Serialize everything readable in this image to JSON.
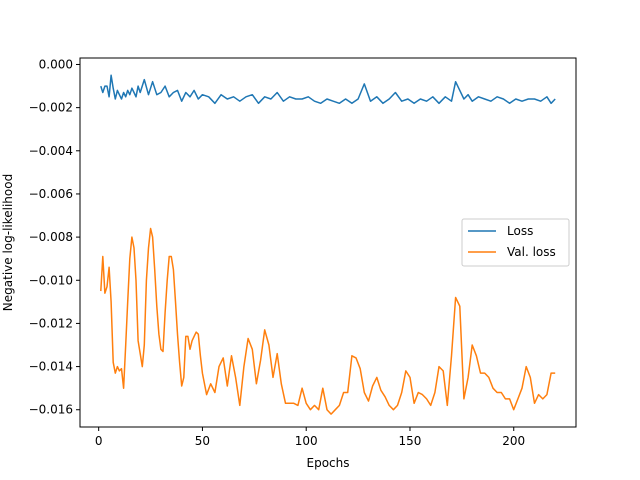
{
  "chart_data": {
    "type": "line",
    "title": "",
    "xlabel": "Epochs",
    "ylabel": "Negative log-likelihood",
    "xlim": [
      -9,
      230
    ],
    "ylim": [
      -0.0168,
      0.0003
    ],
    "xticks": [
      0,
      50,
      100,
      150,
      200
    ],
    "yticks": [
      0.0,
      -0.002,
      -0.004,
      -0.006,
      -0.008,
      -0.01,
      -0.012,
      -0.014,
      -0.016
    ],
    "ytick_labels": [
      "0.000",
      "−0.002",
      "−0.004",
      "−0.006",
      "−0.008",
      "−0.010",
      "−0.012",
      "−0.014",
      "−0.016"
    ],
    "grid": false,
    "legend_position": "center-right",
    "series": [
      {
        "name": "Loss",
        "color": "#1f77b4",
        "x": [
          1,
          2,
          3,
          4,
          5,
          6,
          7,
          8,
          9,
          10,
          11,
          12,
          13,
          14,
          15,
          16,
          17,
          18,
          19,
          20,
          22,
          24,
          26,
          28,
          30,
          32,
          34,
          36,
          38,
          40,
          42,
          44,
          46,
          48,
          50,
          53,
          56,
          59,
          62,
          65,
          68,
          71,
          74,
          77,
          80,
          83,
          86,
          89,
          92,
          95,
          98,
          101,
          104,
          107,
          110,
          113,
          116,
          119,
          122,
          125,
          128,
          131,
          134,
          137,
          140,
          143,
          146,
          149,
          152,
          155,
          158,
          161,
          164,
          167,
          170,
          172,
          174,
          176,
          178,
          180,
          183,
          186,
          189,
          192,
          195,
          198,
          201,
          204,
          207,
          210,
          213,
          216,
          218,
          220
        ],
        "y": [
          -0.001,
          -0.0013,
          -0.001,
          -0.001,
          -0.0015,
          -0.0005,
          -0.0011,
          -0.0016,
          -0.0012,
          -0.0014,
          -0.0016,
          -0.0013,
          -0.0015,
          -0.0012,
          -0.0014,
          -0.0011,
          -0.0013,
          -0.0015,
          -0.001,
          -0.0013,
          -0.0007,
          -0.0014,
          -0.0008,
          -0.0014,
          -0.0013,
          -0.001,
          -0.0015,
          -0.0013,
          -0.0012,
          -0.0017,
          -0.0013,
          -0.0015,
          -0.0012,
          -0.0016,
          -0.0014,
          -0.0015,
          -0.0018,
          -0.0014,
          -0.0016,
          -0.0015,
          -0.0017,
          -0.0015,
          -0.0014,
          -0.0018,
          -0.0015,
          -0.0016,
          -0.0013,
          -0.0017,
          -0.0015,
          -0.0016,
          -0.0016,
          -0.0015,
          -0.0017,
          -0.0018,
          -0.0016,
          -0.0017,
          -0.0018,
          -0.0016,
          -0.0018,
          -0.0016,
          -0.0009,
          -0.0017,
          -0.0015,
          -0.0018,
          -0.0016,
          -0.0013,
          -0.0017,
          -0.0016,
          -0.0018,
          -0.0016,
          -0.0017,
          -0.0015,
          -0.0018,
          -0.0015,
          -0.0017,
          -0.0008,
          -0.0012,
          -0.0016,
          -0.0014,
          -0.0017,
          -0.0015,
          -0.0016,
          -0.0017,
          -0.0015,
          -0.0016,
          -0.0018,
          -0.0016,
          -0.0017,
          -0.0016,
          -0.0016,
          -0.0017,
          -0.0015,
          -0.0018,
          -0.0016
        ]
      },
      {
        "name": "Val. loss",
        "color": "#ff7f0e",
        "x": [
          1,
          2,
          3,
          4,
          5,
          6,
          7,
          8,
          9,
          10,
          11,
          12,
          13,
          14,
          15,
          16,
          17,
          18,
          19,
          20,
          21,
          22,
          23,
          24,
          25,
          26,
          27,
          28,
          29,
          30,
          31,
          32,
          33,
          34,
          35,
          36,
          37,
          38,
          39,
          40,
          41,
          42,
          43,
          44,
          45,
          46,
          47,
          48,
          49,
          50,
          52,
          54,
          56,
          58,
          60,
          62,
          64,
          66,
          68,
          70,
          72,
          74,
          76,
          78,
          80,
          82,
          84,
          86,
          88,
          90,
          92,
          94,
          96,
          98,
          100,
          102,
          104,
          106,
          108,
          110,
          112,
          114,
          116,
          118,
          120,
          122,
          124,
          126,
          128,
          130,
          132,
          134,
          136,
          138,
          140,
          142,
          144,
          146,
          148,
          150,
          152,
          154,
          156,
          158,
          160,
          162,
          164,
          166,
          168,
          170,
          172,
          174,
          176,
          178,
          180,
          182,
          184,
          186,
          188,
          190,
          192,
          194,
          196,
          198,
          200,
          202,
          204,
          206,
          208,
          210,
          212,
          214,
          216,
          218,
          220
        ],
        "y": [
          -0.0105,
          -0.0089,
          -0.0106,
          -0.0103,
          -0.0094,
          -0.011,
          -0.0138,
          -0.0143,
          -0.014,
          -0.0142,
          -0.0141,
          -0.015,
          -0.013,
          -0.011,
          -0.009,
          -0.008,
          -0.0085,
          -0.01,
          -0.0128,
          -0.0134,
          -0.014,
          -0.013,
          -0.01,
          -0.0085,
          -0.0076,
          -0.008,
          -0.0095,
          -0.0112,
          -0.0125,
          -0.0132,
          -0.0133,
          -0.0115,
          -0.01,
          -0.0089,
          -0.0089,
          -0.0095,
          -0.011,
          -0.0125,
          -0.0138,
          -0.0149,
          -0.0145,
          -0.0126,
          -0.0126,
          -0.0132,
          -0.0128,
          -0.0126,
          -0.0124,
          -0.0125,
          -0.0135,
          -0.0143,
          -0.0153,
          -0.0148,
          -0.0152,
          -0.014,
          -0.0136,
          -0.0149,
          -0.0135,
          -0.0145,
          -0.0158,
          -0.014,
          -0.0127,
          -0.0132,
          -0.0148,
          -0.0137,
          -0.0123,
          -0.013,
          -0.0145,
          -0.0134,
          -0.0148,
          -0.0157,
          -0.0157,
          -0.0157,
          -0.0158,
          -0.015,
          -0.0157,
          -0.016,
          -0.0158,
          -0.016,
          -0.015,
          -0.016,
          -0.0162,
          -0.016,
          -0.0158,
          -0.0152,
          -0.0152,
          -0.0135,
          -0.0136,
          -0.0141,
          -0.0152,
          -0.0156,
          -0.0149,
          -0.0145,
          -0.0151,
          -0.0154,
          -0.0158,
          -0.016,
          -0.0158,
          -0.0152,
          -0.0142,
          -0.0145,
          -0.0157,
          -0.0152,
          -0.0153,
          -0.0155,
          -0.0158,
          -0.0152,
          -0.014,
          -0.0142,
          -0.0158,
          -0.0135,
          -0.0108,
          -0.0112,
          -0.0155,
          -0.0145,
          -0.013,
          -0.0135,
          -0.0143,
          -0.0143,
          -0.0145,
          -0.015,
          -0.0152,
          -0.0152,
          -0.0155,
          -0.0155,
          -0.016,
          -0.0155,
          -0.015,
          -0.014,
          -0.0145,
          -0.0157,
          -0.0153,
          -0.0155,
          -0.0153,
          -0.0143,
          -0.0143
        ]
      }
    ]
  }
}
